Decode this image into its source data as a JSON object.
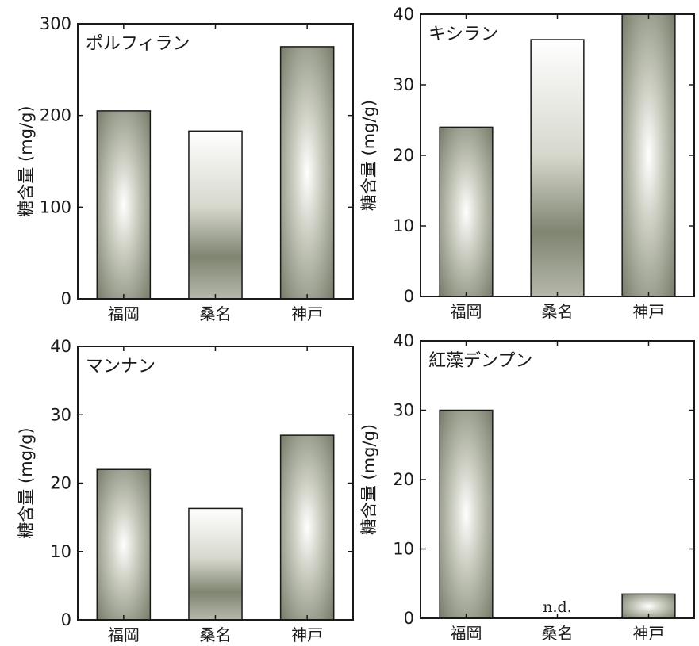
{
  "ylabel": "糖含量 (mg/g)",
  "colors": {
    "bar_dark": "#6d7360",
    "bar_mid": "#a9ad9d",
    "bar_light": "#ffffff",
    "axis": "#1a1a1a"
  },
  "chart_data": [
    {
      "type": "bar",
      "title": "ポルフィラン",
      "categories": [
        "福岡",
        "桑名",
        "神戸"
      ],
      "values": [
        205,
        183,
        275
      ],
      "ylim": [
        0,
        300
      ],
      "yticks": [
        0,
        100,
        200,
        300
      ],
      "ylabel": "糖含量 (mg/g)",
      "annotations": []
    },
    {
      "type": "bar",
      "title": "キシラン",
      "categories": [
        "福岡",
        "桑名",
        "神戸"
      ],
      "values": [
        24,
        36.4,
        40
      ],
      "ylim": [
        0,
        40
      ],
      "yticks": [
        0,
        10,
        20,
        30,
        40
      ],
      "ylabel": "糖含量 (mg/g)",
      "annotations": []
    },
    {
      "type": "bar",
      "title": "マンナン",
      "categories": [
        "福岡",
        "桑名",
        "神戸"
      ],
      "values": [
        22,
        16.3,
        27
      ],
      "ylim": [
        0,
        40
      ],
      "yticks": [
        0,
        10,
        20,
        30,
        40
      ],
      "ylabel": "糖含量 (mg/g)",
      "annotations": []
    },
    {
      "type": "bar",
      "title": "紅藻デンプン",
      "categories": [
        "福岡",
        "桑名",
        "神戸"
      ],
      "values": [
        30,
        null,
        3.5
      ],
      "ylim": [
        0,
        40
      ],
      "yticks": [
        0,
        10,
        20,
        30,
        40
      ],
      "ylabel": "糖含量 (mg/g)",
      "annotations": [
        {
          "category": "桑名",
          "text": "n.d."
        }
      ]
    }
  ]
}
